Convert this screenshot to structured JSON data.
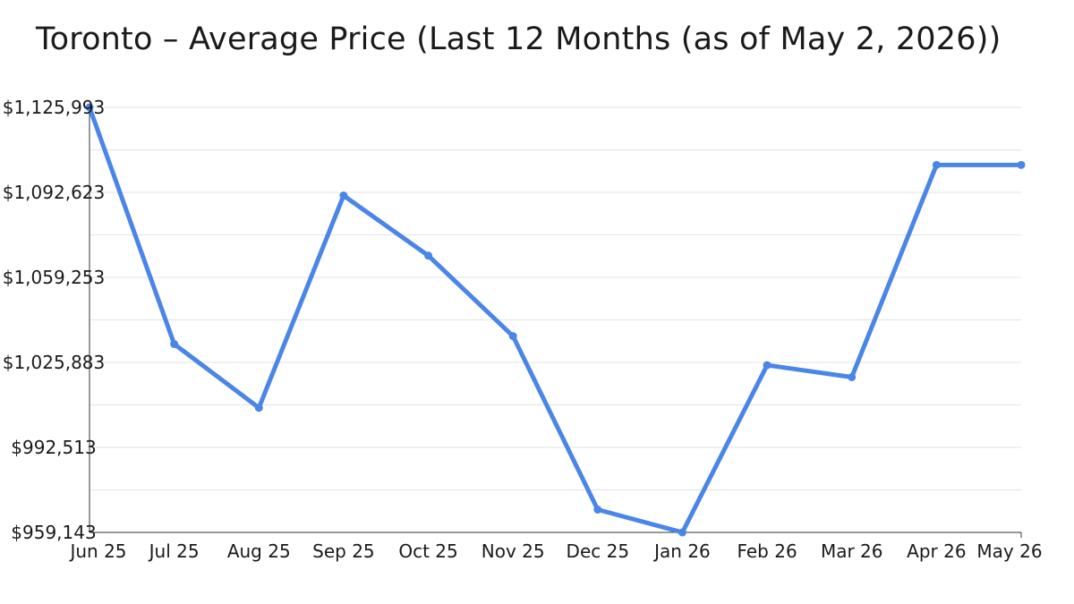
{
  "chart_data": {
    "type": "line",
    "title": "Toronto – Average Price (Last 12 Months (as of May 2, 2026))",
    "xlabel": "",
    "ylabel": "",
    "categories": [
      "Jun 25",
      "Jul 25",
      "Aug 25",
      "Sep 25",
      "Oct 25",
      "Nov 25",
      "Dec 25",
      "Jan 26",
      "Feb 26",
      "Mar 26",
      "Apr 26",
      "May 26"
    ],
    "series": [
      {
        "values": [
          1125993,
          1033096,
          1008064,
          1091372,
          1067800,
          1036200,
          968100,
          959143,
          1024800,
          1020100,
          1103400,
          1103400
        ],
        "color": "#4a86e8"
      }
    ],
    "ylim": [
      959143,
      1125993
    ],
    "yticks": [
      959143,
      992513,
      1025883,
      1059253,
      1092623,
      1125993
    ],
    "ytick_labels": [
      "$959,143",
      "$992,513",
      "$1,025,883",
      "$1,059,253",
      "$1,092,623",
      "$1,125,993"
    ],
    "grid": true
  }
}
